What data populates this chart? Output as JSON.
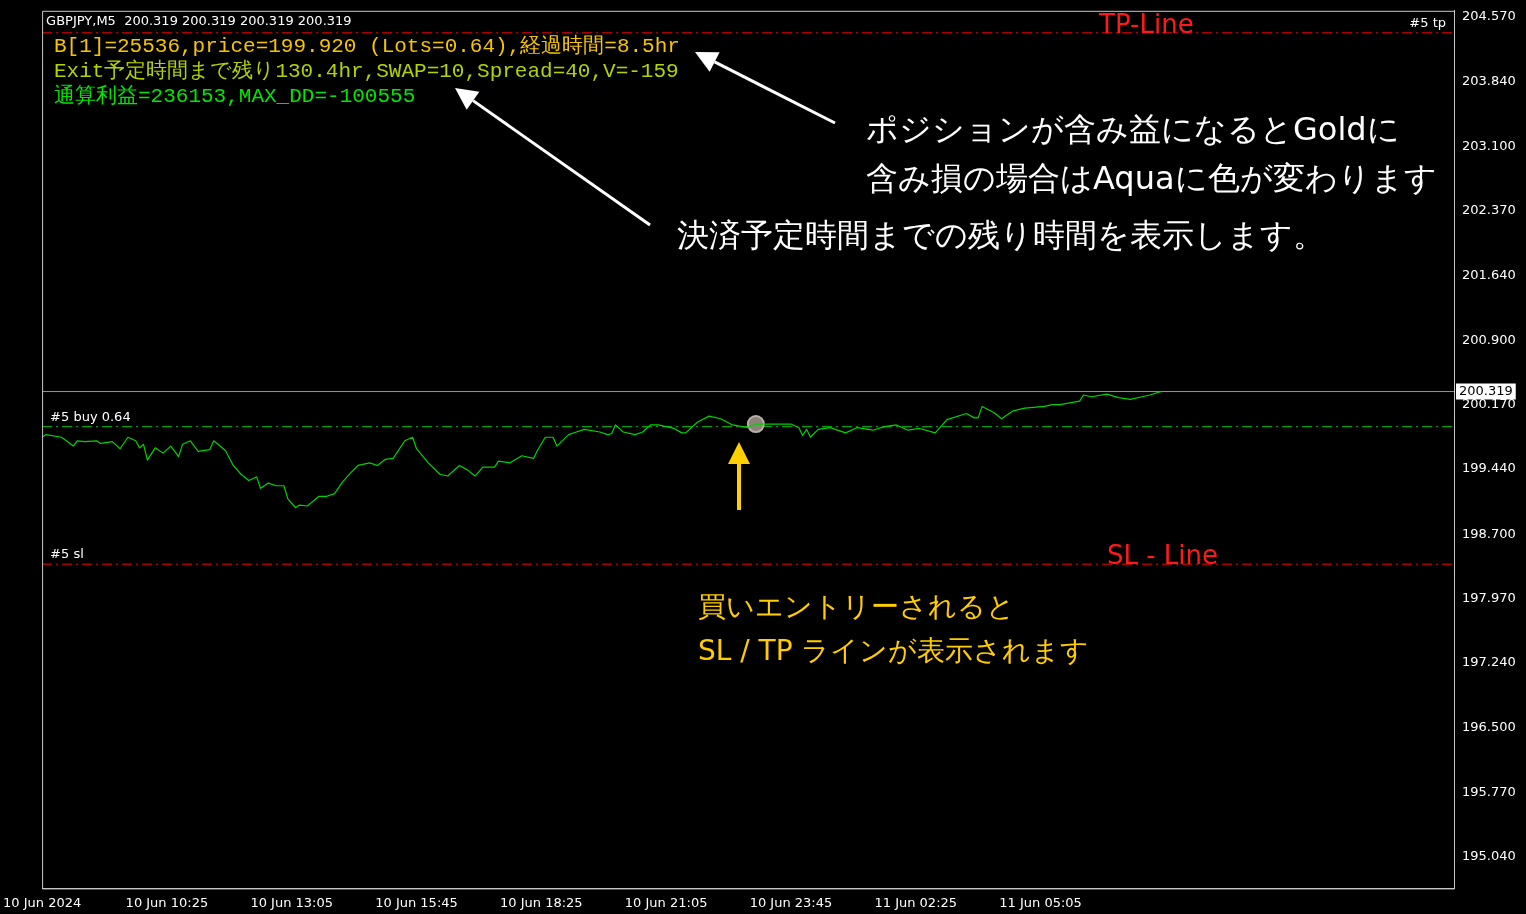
{
  "chart_data": {
    "type": "line",
    "title": "GBPJPY,M5  200.319 200.319 200.319 200.319",
    "x": [
      "2024-06-10T07:45",
      "2024-06-10T07:50",
      "2024-06-10T08:10",
      "2024-06-10T08:25",
      "2024-06-10T08:30",
      "2024-06-10T08:40",
      "2024-06-10T08:55",
      "2024-06-10T09:00",
      "2024-06-10T09:15",
      "2024-06-10T09:25",
      "2024-06-10T09:35",
      "2024-06-10T09:45",
      "2024-06-10T09:50",
      "2024-06-10T09:55",
      "2024-06-10T10:00",
      "2024-06-10T10:10",
      "2024-06-10T10:20",
      "2024-06-10T10:30",
      "2024-06-10T10:40",
      "2024-06-10T10:45",
      "2024-06-10T10:55",
      "2024-06-10T11:05",
      "2024-06-10T11:20",
      "2024-06-10T11:25",
      "2024-06-10T11:40",
      "2024-06-10T11:50",
      "2024-06-10T12:00",
      "2024-06-10T12:10",
      "2024-06-10T12:20",
      "2024-06-10T12:25",
      "2024-06-10T12:35",
      "2024-06-10T12:45",
      "2024-06-10T12:55",
      "2024-06-10T13:00",
      "2024-06-10T13:10",
      "2024-06-10T13:15",
      "2024-06-10T13:25",
      "2024-06-10T13:40",
      "2024-06-10T13:50",
      "2024-06-10T14:00",
      "2024-06-10T14:10",
      "2024-06-10T14:20",
      "2024-06-10T14:30",
      "2024-06-10T14:45",
      "2024-06-10T14:55",
      "2024-06-10T15:05",
      "2024-06-10T15:15",
      "2024-06-10T15:30",
      "2024-06-10T15:40",
      "2024-06-10T15:45",
      "2024-06-10T16:00",
      "2024-06-10T16:15",
      "2024-06-10T16:25",
      "2024-06-10T16:40",
      "2024-06-10T16:50",
      "2024-06-10T17:00",
      "2024-06-10T17:10",
      "2024-06-10T17:25",
      "2024-06-10T17:30",
      "2024-06-10T17:45",
      "2024-06-10T18:00",
      "2024-06-10T18:15",
      "2024-06-10T18:20",
      "2024-06-10T18:30",
      "2024-06-10T18:40",
      "2024-06-10T18:45",
      "2024-06-10T19:00",
      "2024-06-10T19:10",
      "2024-06-10T19:20",
      "2024-06-10T19:40",
      "2024-06-10T19:50",
      "2024-06-10T19:55",
      "2024-06-10T20:00",
      "2024-06-10T20:10",
      "2024-06-10T20:25",
      "2024-06-10T20:35",
      "2024-06-10T20:45",
      "2024-06-10T20:55",
      "2024-06-10T21:15",
      "2024-06-10T21:25",
      "2024-06-10T21:30",
      "2024-06-10T21:45",
      "2024-06-10T22:00",
      "2024-06-10T22:15",
      "2024-06-10T22:30",
      "2024-06-10T22:50",
      "2024-06-10T23:00",
      "2024-06-10T23:25",
      "2024-06-10T23:45",
      "2024-06-10T23:55",
      "2024-06-11T00:00",
      "2024-06-11T00:05",
      "2024-06-11T00:10",
      "2024-06-11T00:20",
      "2024-06-11T00:35",
      "2024-06-11T00:55",
      "2024-06-11T01:10",
      "2024-06-11T01:30",
      "2024-06-11T01:45",
      "2024-06-11T02:00",
      "2024-06-11T02:15",
      "2024-06-11T02:30",
      "2024-06-11T02:50",
      "2024-06-11T03:05",
      "2024-06-11T03:30",
      "2024-06-11T03:40",
      "2024-06-11T03:45",
      "2024-06-11T03:50",
      "2024-06-11T04:05",
      "2024-06-11T04:15",
      "2024-06-11T04:30",
      "2024-06-11T04:45",
      "2024-06-11T05:10",
      "2024-06-11T05:20",
      "2024-06-11T05:30",
      "2024-06-11T05:55",
      "2024-06-11T06:00",
      "2024-06-11T06:10",
      "2024-06-11T06:30",
      "2024-06-11T06:45",
      "2024-06-11T07:00",
      "2024-06-11T07:15",
      "2024-06-11T07:25",
      "2024-06-11T07:40"
    ],
    "series": [
      {
        "color": "#00d200",
        "marker": "none",
        "values": [
          199.8,
          199.83,
          199.8,
          199.7,
          199.76,
          199.75,
          199.76,
          199.73,
          199.75,
          199.67,
          199.8,
          199.76,
          199.68,
          199.72,
          199.54,
          199.68,
          199.62,
          199.7,
          199.58,
          199.72,
          199.76,
          199.64,
          199.66,
          199.76,
          199.65,
          199.48,
          199.38,
          199.31,
          199.35,
          199.22,
          199.28,
          199.25,
          199.25,
          199.1,
          199.0,
          199.03,
          199.02,
          199.13,
          199.13,
          199.16,
          199.29,
          199.39,
          199.48,
          199.51,
          199.48,
          199.55,
          199.56,
          199.76,
          199.8,
          199.67,
          199.51,
          199.38,
          199.36,
          199.48,
          199.43,
          199.36,
          199.46,
          199.46,
          199.53,
          199.51,
          199.59,
          199.56,
          199.65,
          199.8,
          199.8,
          199.7,
          199.83,
          199.86,
          199.89,
          199.86,
          199.83,
          199.84,
          199.94,
          199.86,
          199.83,
          199.86,
          199.94,
          199.94,
          199.9,
          199.85,
          199.85,
          199.97,
          200.04,
          200.01,
          199.94,
          199.91,
          199.95,
          199.95,
          199.95,
          199.91,
          199.82,
          199.89,
          199.8,
          199.89,
          199.91,
          199.85,
          199.91,
          199.88,
          199.92,
          199.94,
          199.88,
          199.9,
          199.85,
          200.0,
          200.07,
          200.02,
          200.02,
          200.15,
          200.08,
          200.01,
          200.1,
          200.13,
          200.15,
          200.17,
          200.17,
          200.21,
          200.28,
          200.26,
          200.29,
          200.25,
          200.23,
          200.26,
          200.28,
          200.32
        ]
      },
      {
        "type": "scatter",
        "color": "#8c8378",
        "marker": "circle",
        "x": [
          "2024-06-10T23:00"
        ],
        "values": [
          199.95
        ]
      }
    ],
    "xlim": [
      "2024-06-10T07:45",
      "2024-06-11T13:55"
    ],
    "xticks": [
      {
        "value": "2024-06-10T07:45",
        "label": "10 Jun 2024"
      },
      {
        "value": "2024-06-10T10:25",
        "label": "10 Jun 10:25"
      },
      {
        "value": "2024-06-10T13:05",
        "label": "10 Jun 13:05"
      },
      {
        "value": "2024-06-10T15:45",
        "label": "10 Jun 15:45"
      },
      {
        "value": "2024-06-10T18:25",
        "label": "10 Jun 18:25"
      },
      {
        "value": "2024-06-10T21:05",
        "label": "10 Jun 21:05"
      },
      {
        "value": "2024-06-10T23:45",
        "label": "10 Jun 23:45"
      },
      {
        "value": "2024-06-11T02:25",
        "label": "11 Jun 02:25"
      },
      {
        "value": "2024-06-11T05:05",
        "label": "11 Jun 05:05"
      }
    ],
    "ylim": [
      194.68,
      204.64
    ],
    "yticks": [
      {
        "value": 204.57,
        "label": "204.570"
      },
      {
        "value": 203.84,
        "label": "203.840"
      },
      {
        "value": 203.1,
        "label": "203.100"
      },
      {
        "value": 202.37,
        "label": "202.370"
      },
      {
        "value": 201.64,
        "label": "201.640"
      },
      {
        "value": 200.9,
        "label": "200.900"
      },
      {
        "value": 200.17,
        "label": "200.170"
      },
      {
        "value": 199.44,
        "label": "199.440"
      },
      {
        "value": 198.7,
        "label": "198.700"
      },
      {
        "value": 197.97,
        "label": "197.970"
      },
      {
        "value": 197.24,
        "label": "197.240"
      },
      {
        "value": 196.5,
        "label": "196.500"
      },
      {
        "value": 195.77,
        "label": "195.770"
      },
      {
        "value": 195.04,
        "label": "195.040"
      }
    ],
    "grid": false,
    "legend": false,
    "ref_lines": [
      {
        "axis": "y",
        "value": 204.39,
        "label": "#5 tp",
        "color": "#ff0000",
        "line_style": "dashed"
      },
      {
        "axis": "y",
        "value": 199.92,
        "label": "#5 buy 0.64",
        "color": "#00c800",
        "line_style": "dashed"
      },
      {
        "axis": "y",
        "value": 198.36,
        "label": "#5 sl",
        "color": "#ff0000",
        "line_style": "dashed"
      },
      {
        "axis": "y",
        "value": 200.319,
        "label": "200.319",
        "color": "#8c96a0",
        "line_style": "solid"
      }
    ],
    "annotations": [
      "B[1]=25536,price=199.920 (Lots=0.64),経過時間=8.5hr",
      "Exit予定時間まで残り130.4hr,SWAP=10,Spread=40,V=-159",
      "通算利益=236153,MAX_DD=-100555",
      "ポジションが含み益になるとGoldに",
      "含み損の場合はAquaに色が変わります",
      "決済予定時間までの残り時間を表示します。",
      "買いエントリーされると",
      "SL / TP ラインが表示されます",
      {
        "text": "TP-Line",
        "x": "2024-06-11T06:20",
        "y": 204.39
      },
      {
        "text": "SL - Line",
        "x": "2024-06-11T06:30",
        "y": 198.36
      }
    ]
  }
}
